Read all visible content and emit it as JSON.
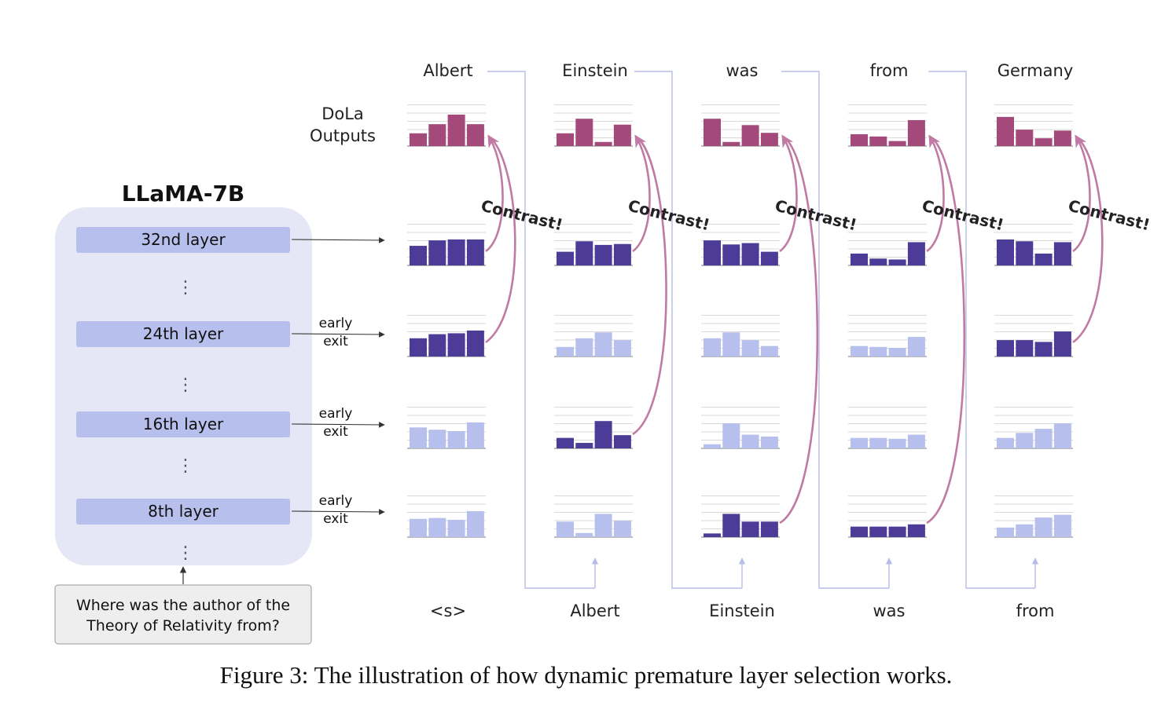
{
  "model_title": "LLaMA-7B",
  "dola_label": [
    "DoLa",
    "Outputs"
  ],
  "layers": [
    {
      "label": "32nd layer",
      "exit_label": []
    },
    {
      "label": "24th layer",
      "exit_label": [
        "early",
        "exit"
      ]
    },
    {
      "label": "16th layer",
      "exit_label": [
        "early",
        "exit"
      ]
    },
    {
      "label": "8th layer",
      "exit_label": [
        "early",
        "exit"
      ]
    }
  ],
  "dots": "⋮",
  "question": [
    "Where was the author of the",
    "Theory of Relativity from?"
  ],
  "output_tokens": [
    "Albert",
    "Einstein",
    "was",
    "from",
    "Germany"
  ],
  "input_tokens": [
    "<s>",
    "Albert",
    "Einstein",
    "was",
    "from"
  ],
  "contrast_label": "Contrast!",
  "columns": [
    {
      "dola": [
        0.28,
        0.48,
        0.69,
        0.48
      ],
      "layers": [
        [
          0.43,
          0.55,
          0.57,
          0.57
        ],
        [
          0.4,
          0.49,
          0.51,
          0.57
        ],
        [
          0.46,
          0.41,
          0.38,
          0.57
        ],
        [
          0.4,
          0.42,
          0.38,
          0.57
        ]
      ],
      "selected": 1
    },
    {
      "dola": [
        0.28,
        0.6,
        0.09,
        0.47
      ],
      "layers": [
        [
          0.3,
          0.53,
          0.45,
          0.47
        ],
        [
          0.21,
          0.4,
          0.53,
          0.36
        ],
        [
          0.23,
          0.12,
          0.6,
          0.29
        ],
        [
          0.34,
          0.09,
          0.51,
          0.36
        ]
      ],
      "selected": 2
    },
    {
      "dola": [
        0.6,
        0.09,
        0.46,
        0.29
      ],
      "layers": [
        [
          0.55,
          0.46,
          0.49,
          0.3
        ],
        [
          0.4,
          0.53,
          0.36,
          0.23
        ],
        [
          0.09,
          0.55,
          0.3,
          0.26
        ],
        [
          0.08,
          0.51,
          0.34,
          0.34
        ]
      ],
      "selected": 3
    },
    {
      "dola": [
        0.26,
        0.21,
        0.11,
        0.57
      ],
      "layers": [
        [
          0.26,
          0.15,
          0.13,
          0.51
        ],
        [
          0.23,
          0.21,
          0.19,
          0.43
        ],
        [
          0.23,
          0.23,
          0.21,
          0.3
        ],
        [
          0.23,
          0.23,
          0.23,
          0.28
        ]
      ],
      "selected": 3
    },
    {
      "dola": [
        0.64,
        0.36,
        0.17,
        0.34
      ],
      "layers": [
        [
          0.57,
          0.53,
          0.26,
          0.51
        ],
        [
          0.36,
          0.36,
          0.32,
          0.55
        ],
        [
          0.23,
          0.34,
          0.43,
          0.55
        ],
        [
          0.21,
          0.28,
          0.43,
          0.49
        ]
      ],
      "selected": 1
    }
  ],
  "colors": {
    "dola_bar": "#a34a7a",
    "selected_bar": "#4d3c97",
    "faded_bar": "#b7c0ed",
    "contrast_arrow": "#c07aa3",
    "panel_bg": "#e5e7f7",
    "layer_box": "#b7c0ed",
    "grid_line": "#cccccc",
    "connector": "#b7bde8",
    "question_bg": "#eeeeee"
  },
  "caption": "Figure 3: The illustration of how dynamic premature layer selection works."
}
